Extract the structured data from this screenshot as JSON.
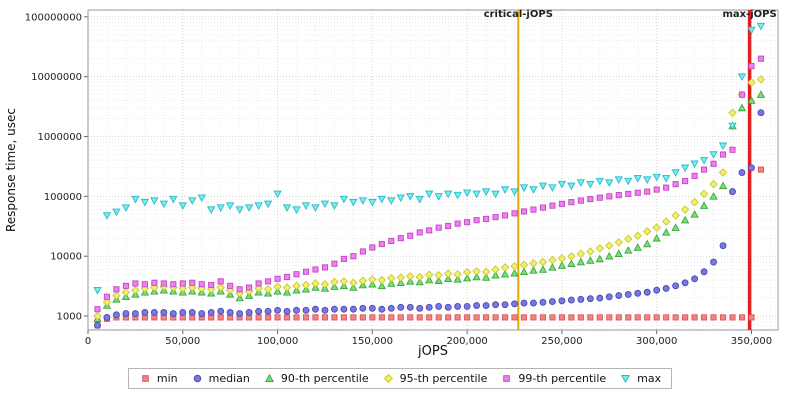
{
  "chart_data": {
    "type": "scatter",
    "title": "",
    "xlabel": "jOPS",
    "ylabel": "Response time, usec",
    "y_scale": "log",
    "xlim": [
      0,
      364000
    ],
    "ylim": [
      585,
      130000000
    ],
    "x_ticks": [
      0,
      50000,
      100000,
      150000,
      200000,
      250000,
      300000,
      350000
    ],
    "y_ticks": [
      1000,
      10000,
      100000,
      1000000,
      10000000,
      100000000
    ],
    "x_minor_step": 10000,
    "grid": "dotted",
    "legend_position": "bottom",
    "marker_lines": [
      {
        "label": "critical-jOPS",
        "value": 227000,
        "color": "#e0a800",
        "label_color": "#7a6000",
        "width": 2
      },
      {
        "label": "max-jOPS",
        "value": 349000,
        "color": "#e02020",
        "label_color": "#8b1a1a",
        "width": 3.5
      }
    ],
    "x": [
      5000,
      10000,
      15000,
      20000,
      25000,
      30000,
      35000,
      40000,
      45000,
      50000,
      55000,
      60000,
      65000,
      70000,
      75000,
      80000,
      85000,
      90000,
      95000,
      100000,
      105000,
      110000,
      115000,
      120000,
      125000,
      130000,
      135000,
      140000,
      145000,
      150000,
      155000,
      160000,
      165000,
      170000,
      175000,
      180000,
      185000,
      190000,
      195000,
      200000,
      205000,
      210000,
      215000,
      220000,
      225000,
      230000,
      235000,
      240000,
      245000,
      250000,
      255000,
      260000,
      265000,
      270000,
      275000,
      280000,
      285000,
      290000,
      295000,
      300000,
      305000,
      310000,
      315000,
      320000,
      325000,
      330000,
      335000,
      340000,
      345000,
      350000,
      355000
    ],
    "series": [
      {
        "name": "min",
        "marker": "square",
        "color": "#f48282",
        "edge": "#d85858",
        "values": [
          700,
          900,
          950,
          950,
          950,
          950,
          950,
          950,
          950,
          950,
          950,
          950,
          950,
          950,
          950,
          950,
          950,
          950,
          950,
          950,
          950,
          950,
          950,
          950,
          950,
          950,
          950,
          950,
          950,
          950,
          950,
          950,
          950,
          950,
          950,
          950,
          950,
          950,
          950,
          950,
          950,
          950,
          950,
          950,
          950,
          950,
          950,
          950,
          950,
          950,
          950,
          950,
          950,
          950,
          950,
          950,
          950,
          950,
          950,
          950,
          950,
          950,
          950,
          950,
          950,
          950,
          950,
          950,
          950,
          950,
          280000
        ]
      },
      {
        "name": "median",
        "marker": "circle",
        "color": "#7878e0",
        "edge": "#4848b8",
        "values": [
          700,
          950,
          1050,
          1100,
          1100,
          1150,
          1150,
          1150,
          1100,
          1150,
          1150,
          1100,
          1150,
          1200,
          1150,
          1100,
          1150,
          1200,
          1200,
          1250,
          1200,
          1250,
          1250,
          1300,
          1250,
          1300,
          1300,
          1300,
          1350,
          1350,
          1300,
          1350,
          1400,
          1400,
          1350,
          1400,
          1450,
          1400,
          1450,
          1450,
          1500,
          1500,
          1550,
          1550,
          1600,
          1650,
          1650,
          1700,
          1750,
          1800,
          1850,
          1900,
          1950,
          2000,
          2100,
          2200,
          2300,
          2400,
          2500,
          2700,
          2900,
          3200,
          3600,
          4200,
          5500,
          8000,
          15000,
          120000,
          250000,
          300000,
          2500000
        ]
      },
      {
        "name": "90-th percentile",
        "marker": "triangle-up",
        "color": "#78e078",
        "edge": "#3aa83a",
        "values": [
          900,
          1500,
          1900,
          2100,
          2300,
          2500,
          2600,
          2700,
          2600,
          2500,
          2600,
          2500,
          2400,
          2600,
          2300,
          2000,
          2200,
          2500,
          2400,
          2600,
          2500,
          2700,
          2800,
          3000,
          2900,
          3100,
          3200,
          3000,
          3300,
          3400,
          3200,
          3500,
          3600,
          3800,
          3700,
          4000,
          3900,
          4200,
          4100,
          4300,
          4500,
          4400,
          4800,
          5000,
          5200,
          5500,
          5800,
          6000,
          6500,
          7000,
          7500,
          8000,
          8500,
          9000,
          10000,
          11000,
          12500,
          14000,
          16000,
          20000,
          25000,
          30000,
          40000,
          50000,
          70000,
          100000,
          150000,
          1500000,
          3000000,
          4000000,
          5000000
        ]
      },
      {
        "name": "95-th percentile",
        "marker": "diamond",
        "color": "#f0f070",
        "edge": "#c8c830",
        "values": [
          1000,
          1700,
          2200,
          2500,
          2700,
          2900,
          3000,
          3100,
          3000,
          2900,
          3000,
          2900,
          2800,
          3000,
          2700,
          2400,
          2600,
          2900,
          2800,
          3100,
          3000,
          3200,
          3300,
          3500,
          3400,
          3700,
          3800,
          3600,
          3900,
          4100,
          4000,
          4300,
          4400,
          4600,
          4500,
          4900,
          4800,
          5100,
          5000,
          5400,
          5600,
          5500,
          6000,
          6500,
          6800,
          7200,
          7600,
          8000,
          8600,
          9200,
          10000,
          11000,
          12000,
          13500,
          15000,
          17000,
          19500,
          22000,
          26000,
          30000,
          38000,
          48000,
          60000,
          80000,
          110000,
          160000,
          250000,
          2500000,
          5000000,
          8000000,
          9000000
        ]
      },
      {
        "name": "99-th percentile",
        "marker": "square",
        "color": "#f07ef0",
        "edge": "#c048c0",
        "values": [
          1300,
          2100,
          2800,
          3200,
          3500,
          3400,
          3600,
          3500,
          3400,
          3500,
          3600,
          3400,
          3300,
          3800,
          3200,
          2800,
          3000,
          3500,
          3800,
          4200,
          4500,
          5000,
          5500,
          6000,
          6500,
          7500,
          9000,
          10000,
          12000,
          14000,
          16000,
          18000,
          20000,
          22000,
          25000,
          27000,
          30000,
          32000,
          35000,
          37000,
          40000,
          42000,
          45000,
          48000,
          52000,
          56000,
          60000,
          65000,
          70000,
          75000,
          80000,
          85000,
          90000,
          95000,
          100000,
          105000,
          110000,
          115000,
          120000,
          130000,
          140000,
          160000,
          180000,
          220000,
          280000,
          350000,
          500000,
          600000,
          5000000,
          15000000,
          20000000
        ]
      },
      {
        "name": "max",
        "marker": "triangle-down",
        "color": "#70f0f0",
        "edge": "#30b8c8",
        "values": [
          2700,
          48000,
          55000,
          65000,
          90000,
          80000,
          85000,
          75000,
          90000,
          70000,
          85000,
          95000,
          60000,
          65000,
          70000,
          60000,
          65000,
          70000,
          75000,
          110000,
          65000,
          60000,
          70000,
          65000,
          75000,
          70000,
          90000,
          80000,
          85000,
          80000,
          90000,
          85000,
          95000,
          100000,
          90000,
          110000,
          100000,
          110000,
          105000,
          115000,
          110000,
          120000,
          110000,
          130000,
          120000,
          140000,
          130000,
          150000,
          140000,
          160000,
          150000,
          170000,
          160000,
          180000,
          170000,
          190000,
          180000,
          200000,
          190000,
          210000,
          200000,
          250000,
          300000,
          350000,
          400000,
          500000,
          700000,
          1500000,
          10000000,
          60000000,
          70000000
        ]
      }
    ]
  }
}
